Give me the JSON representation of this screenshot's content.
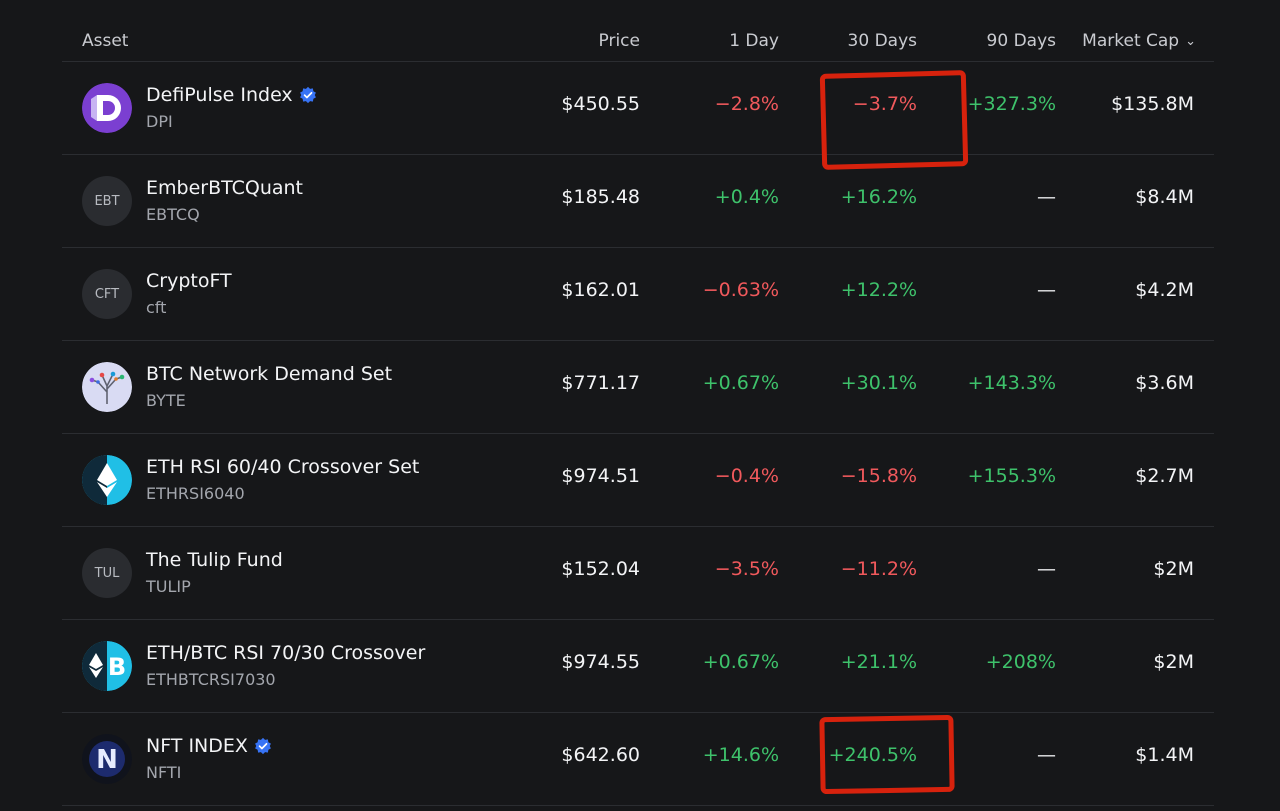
{
  "header": {
    "asset": "Asset",
    "price": "Price",
    "day1": "1 Day",
    "day30": "30 Days",
    "day90": "90 Days",
    "market_cap": "Market Cap"
  },
  "colors": {
    "negative": "#f0595c",
    "positive": "#3ec26b",
    "highlight": "#d7220d"
  },
  "rows": [
    {
      "name": "DefiPulse Index",
      "symbol": "DPI",
      "verified": true,
      "logo": "dpi-logo",
      "price": "$450.55",
      "d1": "−2.8%",
      "d30": "−3.7%",
      "d90": "+327.3%",
      "mcap": "$135.8M",
      "d1_sign": "neg",
      "d30_sign": "neg",
      "d90_sign": "pos",
      "highlighted": "d30"
    },
    {
      "name": "EmberBTCQuant",
      "symbol": "EBTCQ",
      "verified": false,
      "logo_text": "EBT",
      "price": "$185.48",
      "d1": "+0.4%",
      "d30": "+16.2%",
      "d90": "—",
      "mcap": "$8.4M",
      "d1_sign": "pos",
      "d30_sign": "pos",
      "d90_sign": "na"
    },
    {
      "name": "CryptoFT",
      "symbol": "cft",
      "verified": false,
      "logo_text": "CFT",
      "price": "$162.01",
      "d1": "−0.63%",
      "d30": "+12.2%",
      "d90": "—",
      "mcap": "$4.2M",
      "d1_sign": "neg",
      "d30_sign": "pos",
      "d90_sign": "na"
    },
    {
      "name": "BTC Network Demand Set",
      "symbol": "BYTE",
      "verified": false,
      "logo": "byte-tree-logo",
      "price": "$771.17",
      "d1": "+0.67%",
      "d30": "+30.1%",
      "d90": "+143.3%",
      "mcap": "$3.6M",
      "d1_sign": "pos",
      "d30_sign": "pos",
      "d90_sign": "pos"
    },
    {
      "name": "ETH RSI 60/40 Crossover Set",
      "symbol": "ETHRSI6040",
      "verified": false,
      "logo": "eth-logo",
      "price": "$974.51",
      "d1": "−0.4%",
      "d30": "−15.8%",
      "d90": "+155.3%",
      "mcap": "$2.7M",
      "d1_sign": "neg",
      "d30_sign": "neg",
      "d90_sign": "pos"
    },
    {
      "name": "The Tulip Fund",
      "symbol": "TULIP",
      "verified": false,
      "logo_text": "TUL",
      "price": "$152.04",
      "d1": "−3.5%",
      "d30": "−11.2%",
      "d90": "—",
      "mcap": "$2M",
      "d1_sign": "neg",
      "d30_sign": "neg",
      "d90_sign": "na"
    },
    {
      "name": "ETH/BTC RSI 70/30 Crossover",
      "symbol": "ETHBTCRSI7030",
      "verified": false,
      "logo": "eth-btc-logo",
      "price": "$974.55",
      "d1": "+0.67%",
      "d30": "+21.1%",
      "d90": "+208%",
      "mcap": "$2M",
      "d1_sign": "pos",
      "d30_sign": "pos",
      "d90_sign": "pos"
    },
    {
      "name": "NFT INDEX",
      "symbol": "NFTI",
      "verified": true,
      "logo": "nft-index-logo",
      "price": "$642.60",
      "d1": "+14.6%",
      "d30": "+240.5%",
      "d90": "—",
      "mcap": "$1.4M",
      "d1_sign": "pos",
      "d30_sign": "pos",
      "d90_sign": "na",
      "highlighted": "d30"
    }
  ]
}
